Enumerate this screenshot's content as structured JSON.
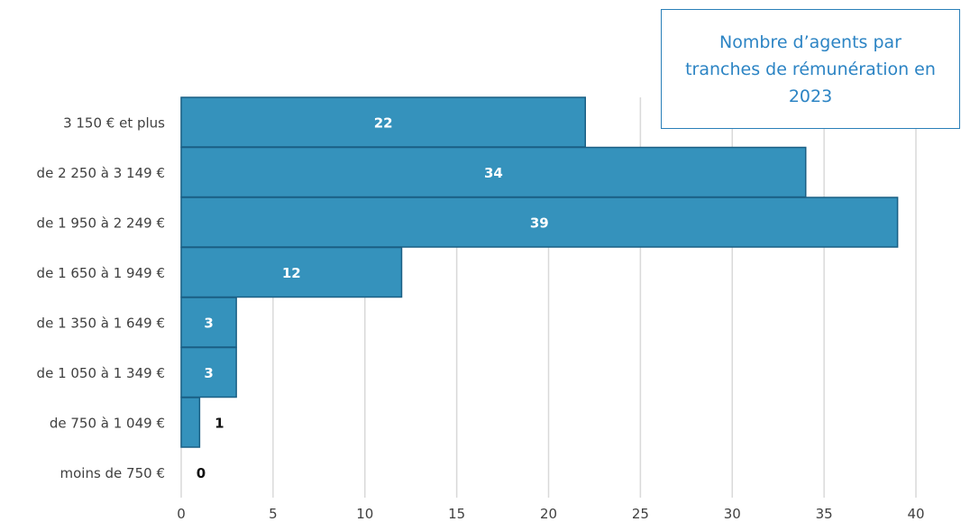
{
  "chart_data": {
    "type": "bar",
    "orientation": "horizontal",
    "title": "Nombre d’agents par tranches de rémunération en 2023",
    "categories": [
      "3 150 € et plus",
      "de 2 250 à 3 149 €",
      "de 1 950 à 2 249 €",
      "de 1 650 à 1 949 €",
      "de 1 350 à 1 649 €",
      "de 1 050 à 1 349 €",
      "de 750 à 1 049 €",
      "moins de 750 €"
    ],
    "values": [
      22,
      34,
      39,
      12,
      3,
      3,
      1,
      0
    ],
    "xlim": [
      0,
      40
    ],
    "x_ticks": [
      0,
      5,
      10,
      15,
      20,
      25,
      30,
      35,
      40
    ],
    "grid": "vertical",
    "legend": "none",
    "colors": {
      "bar": "#3592bc",
      "bar_edge": "#1a5f84",
      "grid": "#d9d9d9",
      "title": "#2c84c4"
    }
  }
}
